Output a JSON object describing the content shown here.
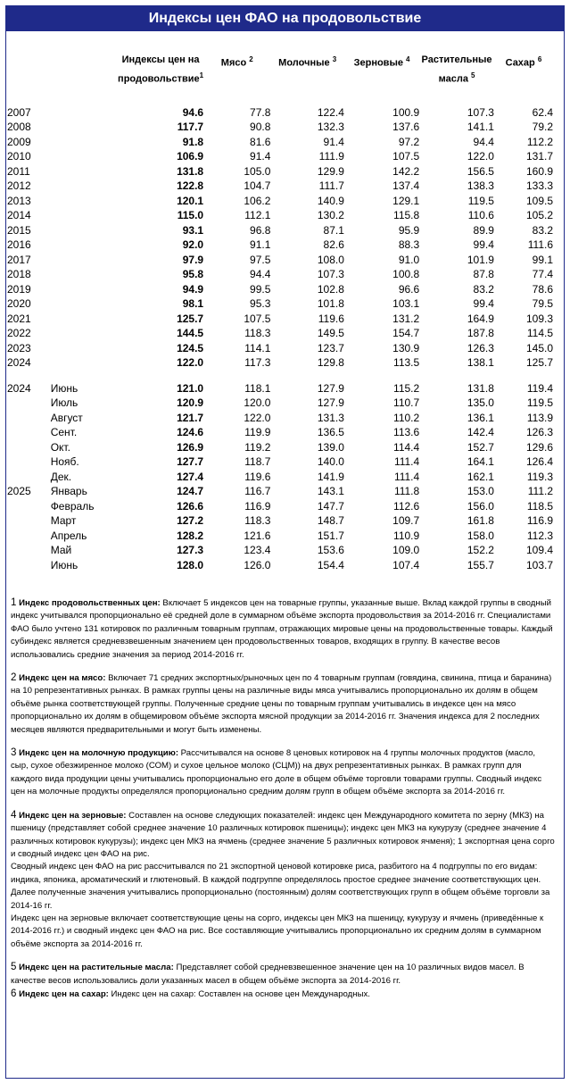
{
  "title": "Индексы цен ФАО на продовольствие",
  "headers": {
    "food": "Индексы цен на продовольствие",
    "food_sup": "1",
    "meat": "Мясо",
    "meat_sup": "2",
    "dairy": "Молочные",
    "dairy_sup": "3",
    "cereals": "Зерновые",
    "cereals_sup": "4",
    "oils": "Растительные масла",
    "oils_sup": "5",
    "sugar": "Сахар",
    "sugar_sup": "6"
  },
  "annual_rows": [
    {
      "year": "2007",
      "food": "94.6",
      "meat": "77.8",
      "dairy": "122.4",
      "cereals": "100.9",
      "oils": "107.3",
      "sugar": "62.4"
    },
    {
      "year": "2008",
      "food": "117.7",
      "meat": "90.8",
      "dairy": "132.3",
      "cereals": "137.6",
      "oils": "141.1",
      "sugar": "79.2"
    },
    {
      "year": "2009",
      "food": "91.8",
      "meat": "81.6",
      "dairy": "91.4",
      "cereals": "97.2",
      "oils": "94.4",
      "sugar": "112.2"
    },
    {
      "year": "2010",
      "food": "106.9",
      "meat": "91.4",
      "dairy": "111.9",
      "cereals": "107.5",
      "oils": "122.0",
      "sugar": "131.7"
    },
    {
      "year": "2011",
      "food": "131.8",
      "meat": "105.0",
      "dairy": "129.9",
      "cereals": "142.2",
      "oils": "156.5",
      "sugar": "160.9"
    },
    {
      "year": "2012",
      "food": "122.8",
      "meat": "104.7",
      "dairy": "111.7",
      "cereals": "137.4",
      "oils": "138.3",
      "sugar": "133.3"
    },
    {
      "year": "2013",
      "food": "120.1",
      "meat": "106.2",
      "dairy": "140.9",
      "cereals": "129.1",
      "oils": "119.5",
      "sugar": "109.5"
    },
    {
      "year": "2014",
      "food": "115.0",
      "meat": "112.1",
      "dairy": "130.2",
      "cereals": "115.8",
      "oils": "110.6",
      "sugar": "105.2"
    },
    {
      "year": "2015",
      "food": "93.1",
      "meat": "96.8",
      "dairy": "87.1",
      "cereals": "95.9",
      "oils": "89.9",
      "sugar": "83.2"
    },
    {
      "year": "2016",
      "food": "92.0",
      "meat": "91.1",
      "dairy": "82.6",
      "cereals": "88.3",
      "oils": "99.4",
      "sugar": "111.6"
    },
    {
      "year": "2017",
      "food": "97.9",
      "meat": "97.5",
      "dairy": "108.0",
      "cereals": "91.0",
      "oils": "101.9",
      "sugar": "99.1"
    },
    {
      "year": "2018",
      "food": "95.8",
      "meat": "94.4",
      "dairy": "107.3",
      "cereals": "100.8",
      "oils": "87.8",
      "sugar": "77.4"
    },
    {
      "year": "2019",
      "food": "94.9",
      "meat": "99.5",
      "dairy": "102.8",
      "cereals": "96.6",
      "oils": "83.2",
      "sugar": "78.6"
    },
    {
      "year": "2020",
      "food": "98.1",
      "meat": "95.3",
      "dairy": "101.8",
      "cereals": "103.1",
      "oils": "99.4",
      "sugar": "79.5"
    },
    {
      "year": "2021",
      "food": "125.7",
      "meat": "107.5",
      "dairy": "119.6",
      "cereals": "131.2",
      "oils": "164.9",
      "sugar": "109.3"
    },
    {
      "year": "2022",
      "food": "144.5",
      "meat": "118.3",
      "dairy": "149.5",
      "cereals": "154.7",
      "oils": "187.8",
      "sugar": "114.5"
    },
    {
      "year": "2023",
      "food": "124.5",
      "meat": "114.1",
      "dairy": "123.7",
      "cereals": "130.9",
      "oils": "126.3",
      "sugar": "145.0"
    },
    {
      "year": "2024",
      "food": "122.0",
      "meat": "117.3",
      "dairy": "129.8",
      "cereals": "113.5",
      "oils": "138.1",
      "sugar": "125.7"
    }
  ],
  "monthly_rows": [
    {
      "year": "2024",
      "month": "Июнь",
      "food": "121.0",
      "meat": "118.1",
      "dairy": "127.9",
      "cereals": "115.2",
      "oils": "131.8",
      "sugar": "119.4"
    },
    {
      "year": "",
      "month": "Июль",
      "food": "120.9",
      "meat": "120.0",
      "dairy": "127.9",
      "cereals": "110.7",
      "oils": "135.0",
      "sugar": "119.5"
    },
    {
      "year": "",
      "month": "Август",
      "food": "121.7",
      "meat": "122.0",
      "dairy": "131.3",
      "cereals": "110.2",
      "oils": "136.1",
      "sugar": "113.9"
    },
    {
      "year": "",
      "month": "Сент.",
      "food": "124.6",
      "meat": "119.9",
      "dairy": "136.5",
      "cereals": "113.6",
      "oils": "142.4",
      "sugar": "126.3"
    },
    {
      "year": "",
      "month": "Окт.",
      "food": "126.9",
      "meat": "119.2",
      "dairy": "139.0",
      "cereals": "114.4",
      "oils": "152.7",
      "sugar": "129.6"
    },
    {
      "year": "",
      "month": "Нояб.",
      "food": "127.7",
      "meat": "118.7",
      "dairy": "140.0",
      "cereals": "111.4",
      "oils": "164.1",
      "sugar": "126.4"
    },
    {
      "year": "",
      "month": "Дек.",
      "food": "127.4",
      "meat": "119.6",
      "dairy": "141.9",
      "cereals": "111.4",
      "oils": "162.1",
      "sugar": "119.3"
    },
    {
      "year": "2025",
      "month": "Январь",
      "food": "124.7",
      "meat": "116.7",
      "dairy": "143.1",
      "cereals": "111.8",
      "oils": "153.0",
      "sugar": "111.2"
    },
    {
      "year": "",
      "month": "Февраль",
      "food": "126.6",
      "meat": "116.9",
      "dairy": "147.7",
      "cereals": "112.6",
      "oils": "156.0",
      "sugar": "118.5"
    },
    {
      "year": "",
      "month": "Март",
      "food": "127.2",
      "meat": "118.3",
      "dairy": "148.7",
      "cereals": "109.7",
      "oils": "161.8",
      "sugar": "116.9"
    },
    {
      "year": "",
      "month": "Апрель",
      "food": "128.2",
      "meat": "121.6",
      "dairy": "151.7",
      "cereals": "110.9",
      "oils": "158.0",
      "sugar": "112.3"
    },
    {
      "year": "",
      "month": "Май",
      "food": "127.3",
      "meat": "123.4",
      "dairy": "153.6",
      "cereals": "109.0",
      "oils": "152.2",
      "sugar": "109.4"
    },
    {
      "year": "",
      "month": "Июнь",
      "food": "128.0",
      "meat": "126.0",
      "dairy": "154.4",
      "cereals": "107.4",
      "oils": "155.7",
      "sugar": "103.7"
    }
  ],
  "notes": [
    {
      "num": "1",
      "title": "Индекс продовольственных цен:",
      "text": " Включает 5 индексов цен на товарные группы, указанные выше. Вклад каждой группы в сводный индекс учитывался пропорционально её средней доле в суммарном объёме экспорта продовольствия за 2014-2016 гг. Специалистами ФАО было учтено 131 котировок по различным товарным группам, отражающих мировые цены на продовольственные товары. Каждый субиндекс является средневзвешенным значением цен продовольственных товаров, входящих в группу. В качестве весов использовались средние значения за период 2014-2016 гг."
    },
    {
      "num": "2",
      "title": "Индекс цен на мясо:",
      "text": " Включает 71 средних экспортных/рыночных цен по 4 товарным группам (говядина, свинина, птица и баранина) на 10 репрезентативных рынках. В рамках группы цены на различные виды мяса учитывались пропорционально их долям в общем объёме рынка соответствующей группы. Полученные средние цены по товарным группам учитывались в индексе цен на мясо пропорционально их долям в общемировом объёме экспорта мясной продукции за 2014-2016 гг. Значения индекса для 2 последних месяцев являются предварительными и могут быть изменены."
    },
    {
      "num": "3",
      "title": "Индекс цен на молочную продукцию:",
      "text": " Рассчитывался на основе 8 ценовых котировок на 4 группы молочных продуктов (масло, сыр, сухое обезжиренное молоко (СОМ) и сухое цельное молоко (СЦМ)) на двух репрезентативных рынках. В рамках групп для каждого вида продукции цены учитывались пропорционально его доле в общем объёме торговли товарами группы. Сводный индекс цен на молочные продукты определялся пропорционально средним долям групп в общем объёме экспорта за 2014-2016 гг."
    },
    {
      "num": "4",
      "title": "Индекс цен на зерновые:",
      "text": " Составлен на основе следующих показателей: индекс цен Международного комитета по зерну (МКЗ) на пшеницу (представляет собой среднее значение 10 различных котировок пшеницы); индекс цен МКЗ на кукурузу (среднее значение 4 различных котировок кукурузы); индекс цен МКЗ на ячмень (среднее значение 5 различных котировок ячменя); 1 экспортная цена сорго и сводный индекс цен ФАО на рис."
    },
    {
      "num": "",
      "title": "",
      "text": "Сводный индекс цен ФАО на рис рассчитывался по 21 экспортной ценовой котировке риса, разбитого на 4 подгруппы по его видам: индика, японика, ароматический и глютеновый. В каждой подгруппе определялось простое среднее значение соответствующих цен. Далее полученные значения учитывались пропорционально (постоянным) долям соответствующих групп в общем объёме торговли за 2014-16 гг."
    },
    {
      "num": "",
      "title": "",
      "text": "Индекс цен на зерновые включает соответствующие цены на сорго, индексы цен МКЗ на пшеницу, кукурузу и ячмень (приведённые к 2014-2016 гг.) и сводный индекс цен ФАО на рис. Все составляющие учитывались пропорционально их средним долям в суммарном объёме экспорта за 2014-2016 гг."
    },
    {
      "num": "5",
      "title": "Индекс цен на растительные масла:",
      "text": " Представляет собой средневзвешенное значение цен на 10 различных видов масел. В качестве весов использовались доли указанных масел в общем объёме экспорта за 2014-2016 гг."
    },
    {
      "num": "6",
      "title": "Индекс цен на сахар:",
      "text": " Индекс цен на сахар: Составлен на основе цен Международных."
    }
  ]
}
